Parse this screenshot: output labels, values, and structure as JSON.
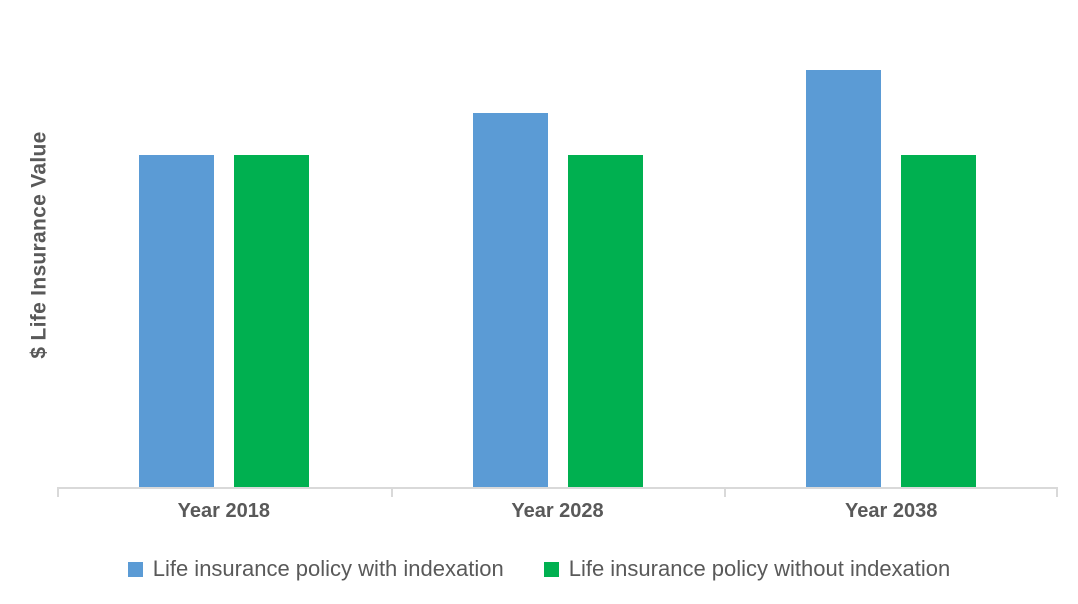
{
  "chart_data": {
    "type": "bar",
    "title": "",
    "xlabel": "",
    "ylabel": "$ Life Insurance Value",
    "categories": [
      "Year 2018",
      "Year 2028",
      "Year 2038"
    ],
    "series": [
      {
        "name": "Life insurance policy with indexation",
        "color": "#5B9BD5",
        "values": [
          100,
          112.5,
          125.5
        ]
      },
      {
        "name": "Life insurance policy without indexation",
        "color": "#00B050",
        "values": [
          100,
          100,
          100
        ]
      }
    ],
    "ylim": [
      0,
      143.5
    ],
    "value_axis_tick_labels": "none (unlabeled value axis, values estimated in relative units)",
    "grid": false,
    "legend_position": "bottom"
  },
  "colors": {
    "series_with_indexation": "#5B9BD5",
    "series_without_indexation": "#00B050",
    "axis_line": "#D9D9D9",
    "text": "#595959",
    "background": "#FFFFFF"
  }
}
